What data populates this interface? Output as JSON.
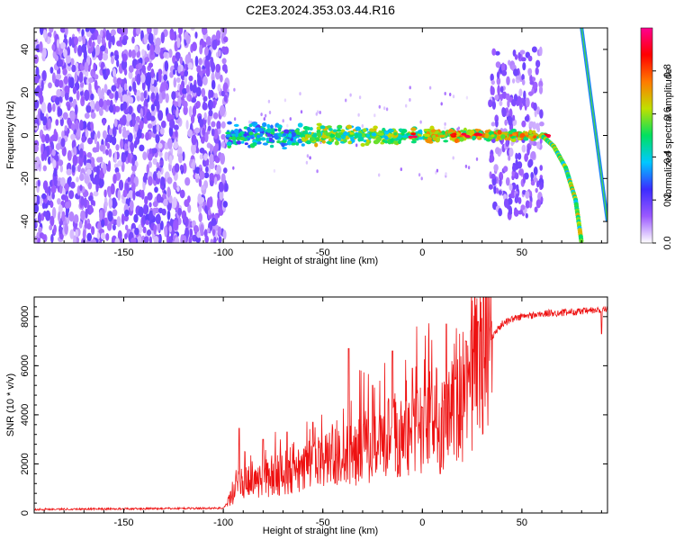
{
  "title": "C2E3.2024.353.03.44.R16",
  "chart_data": [
    {
      "type": "heatmap",
      "xlabel": "Height of straight line (km)",
      "ylabel": "Frequency (Hz)",
      "xlim": [
        -195,
        93
      ],
      "ylim": [
        -50,
        50
      ],
      "xticks": [
        -150,
        -100,
        -50,
        0,
        50
      ],
      "yticks": [
        -40,
        -20,
        0,
        20,
        40
      ],
      "colorbar": {
        "label": "Normalized spectral amplitude",
        "range": [
          0,
          1
        ],
        "ticks": [
          0.0,
          0.2,
          0.4,
          0.6,
          0.8
        ],
        "colors": [
          "#ffffff",
          "#9b59ff",
          "#3b2cff",
          "#00c8ff",
          "#00e060",
          "#c0e000",
          "#ff7a00",
          "#ff0000",
          "#ff0090"
        ]
      },
      "features": {
        "noise_region_x": [
          -195,
          -98
        ],
        "carrier_band_x": [
          -98,
          62
        ],
        "carrier_frequency": 0,
        "burst_region_x": [
          34,
          60
        ],
        "bright_points_x": [
          -5,
          15,
          22,
          28,
          63
        ],
        "falling_branch": [
          [
            60,
            0
          ],
          [
            66,
            -5
          ],
          [
            72,
            -15
          ],
          [
            77,
            -30
          ],
          [
            80,
            -50
          ]
        ],
        "aliased_line": [
          [
            80,
            50
          ],
          [
            93,
            -40
          ]
        ]
      }
    },
    {
      "type": "line",
      "xlabel": "Height of straight line (km)",
      "ylabel": "SNR (10 * v/v)",
      "xlim": [
        -195,
        93
      ],
      "ylim": [
        0,
        8800
      ],
      "xticks": [
        -150,
        -100,
        -50,
        0,
        50
      ],
      "yticks": [
        0,
        2000,
        4000,
        6000,
        8000
      ],
      "color": "#ee1111",
      "series": [
        {
          "name": "",
          "x": [
            -195,
            -150,
            -100,
            -97,
            -95,
            -92,
            -90,
            -85,
            -80,
            -75,
            -70,
            -65,
            -60,
            -55,
            -50,
            -45,
            -40,
            -35,
            -30,
            -25,
            -20,
            -15,
            -10,
            -5,
            0,
            5,
            10,
            15,
            20,
            25,
            30,
            35,
            40,
            45,
            50,
            55,
            60,
            65,
            70,
            75,
            80,
            85,
            90,
            93
          ],
          "y": [
            150,
            170,
            200,
            500,
            800,
            1100,
            1300,
            1200,
            1300,
            1500,
            1600,
            1650,
            1750,
            2000,
            2100,
            2250,
            2300,
            2400,
            2600,
            2700,
            3000,
            3200,
            3200,
            3300,
            3500,
            3700,
            3900,
            4100,
            4400,
            5200,
            6300,
            7200,
            7700,
            7900,
            8000,
            8050,
            8100,
            8150,
            8150,
            8200,
            8200,
            8250,
            8250,
            8300
          ],
          "spikes": [
            [
              -92,
              3450
            ],
            [
              -80,
              3000
            ],
            [
              -68,
              3300
            ],
            [
              -55,
              3700
            ],
            [
              -37,
              6700
            ],
            [
              -25,
              5200
            ],
            [
              -15,
              6600
            ],
            [
              -5,
              5900
            ],
            [
              0,
              4300
            ],
            [
              9,
              1600
            ],
            [
              12,
              7700
            ],
            [
              22,
              7000
            ],
            [
              28,
              7800
            ],
            [
              90,
              7300
            ]
          ]
        }
      ]
    }
  ]
}
